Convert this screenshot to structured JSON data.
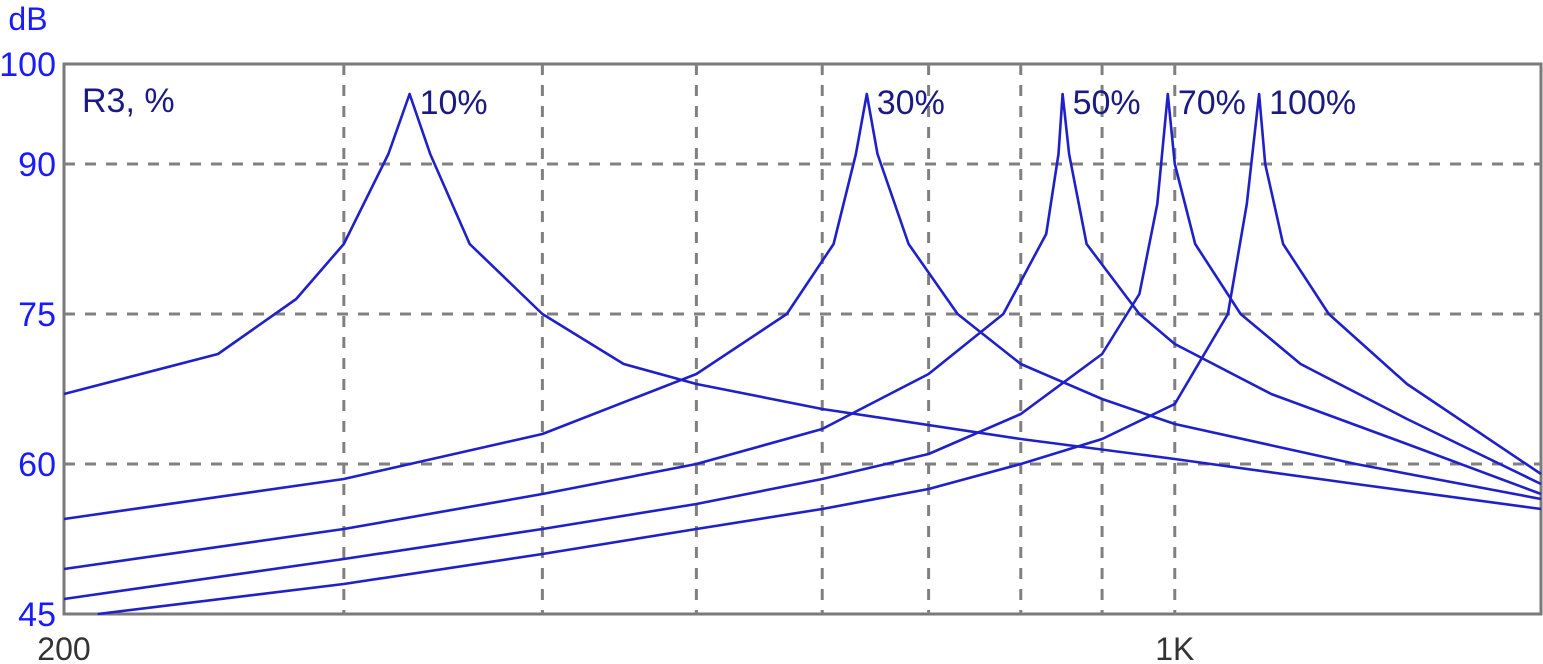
{
  "chart_data": {
    "type": "line",
    "title": "",
    "ylabel": "dB",
    "xlabel": "",
    "annotation": "R3, %",
    "x_scale": "log",
    "xlim": [
      200,
      1700
    ],
    "ylim": [
      45,
      100
    ],
    "x_ticks": [
      {
        "value": 200,
        "label": "200"
      },
      {
        "value": 1000,
        "label": "1K"
      }
    ],
    "x_grid": [
      300,
      400,
      500,
      600,
      700,
      800,
      900,
      1000
    ],
    "y_ticks": [
      {
        "value": 100,
        "label": "100"
      },
      {
        "value": 90,
        "label": "90"
      },
      {
        "value": 75,
        "label": "75"
      },
      {
        "value": 60,
        "label": "60"
      },
      {
        "value": 45,
        "label": "45"
      }
    ],
    "grid": true,
    "line_color": "#2020c8",
    "series": [
      {
        "name": "10%",
        "peak_freq": 330,
        "peak_db": 97,
        "points": [
          [
            200,
            67
          ],
          [
            250,
            71
          ],
          [
            280,
            76.5
          ],
          [
            300,
            82
          ],
          [
            320,
            91
          ],
          [
            330,
            97
          ],
          [
            340,
            91
          ],
          [
            360,
            82
          ],
          [
            400,
            75
          ],
          [
            450,
            70
          ],
          [
            500,
            68
          ],
          [
            600,
            65.5
          ],
          [
            800,
            62.5
          ],
          [
            1000,
            60.5
          ],
          [
            1300,
            58
          ],
          [
            1700,
            55.5
          ]
        ]
      },
      {
        "name": "30%",
        "peak_freq": 640,
        "peak_db": 97,
        "points": [
          [
            200,
            54.5
          ],
          [
            300,
            58.5
          ],
          [
            400,
            63
          ],
          [
            500,
            69
          ],
          [
            570,
            75
          ],
          [
            610,
            82
          ],
          [
            630,
            91
          ],
          [
            640,
            97
          ],
          [
            650,
            91
          ],
          [
            680,
            82
          ],
          [
            730,
            75
          ],
          [
            800,
            70
          ],
          [
            900,
            66.5
          ],
          [
            1000,
            64
          ],
          [
            1300,
            60
          ],
          [
            1700,
            56.5
          ]
        ]
      },
      {
        "name": "50%",
        "peak_freq": 850,
        "peak_db": 97,
        "points": [
          [
            200,
            49.5
          ],
          [
            300,
            53.5
          ],
          [
            400,
            57
          ],
          [
            500,
            60
          ],
          [
            600,
            63.5
          ],
          [
            700,
            69
          ],
          [
            780,
            75
          ],
          [
            830,
            83
          ],
          [
            845,
            91
          ],
          [
            850,
            97
          ],
          [
            858,
            91
          ],
          [
            880,
            82
          ],
          [
            950,
            75
          ],
          [
            1000,
            72
          ],
          [
            1150,
            67
          ],
          [
            1400,
            62
          ],
          [
            1700,
            57
          ]
        ]
      },
      {
        "name": "70%",
        "peak_freq": 990,
        "peak_db": 97,
        "points": [
          [
            200,
            46.5
          ],
          [
            300,
            50.5
          ],
          [
            400,
            53.5
          ],
          [
            500,
            56
          ],
          [
            600,
            58.5
          ],
          [
            700,
            61
          ],
          [
            800,
            65
          ],
          [
            900,
            71
          ],
          [
            950,
            77
          ],
          [
            975,
            86
          ],
          [
            990,
            97
          ],
          [
            1000,
            90
          ],
          [
            1030,
            82
          ],
          [
            1100,
            75
          ],
          [
            1200,
            70
          ],
          [
            1400,
            64.5
          ],
          [
            1700,
            58
          ]
        ]
      },
      {
        "name": "100%",
        "peak_freq": 1130,
        "peak_db": 97,
        "points": [
          [
            210,
            45
          ],
          [
            300,
            48
          ],
          [
            400,
            51
          ],
          [
            500,
            53.5
          ],
          [
            600,
            55.5
          ],
          [
            700,
            57.5
          ],
          [
            800,
            60
          ],
          [
            900,
            62.5
          ],
          [
            1000,
            66
          ],
          [
            1080,
            75
          ],
          [
            1110,
            86
          ],
          [
            1130,
            97
          ],
          [
            1140,
            90
          ],
          [
            1170,
            82
          ],
          [
            1250,
            75
          ],
          [
            1400,
            68
          ],
          [
            1700,
            59
          ]
        ]
      }
    ]
  }
}
